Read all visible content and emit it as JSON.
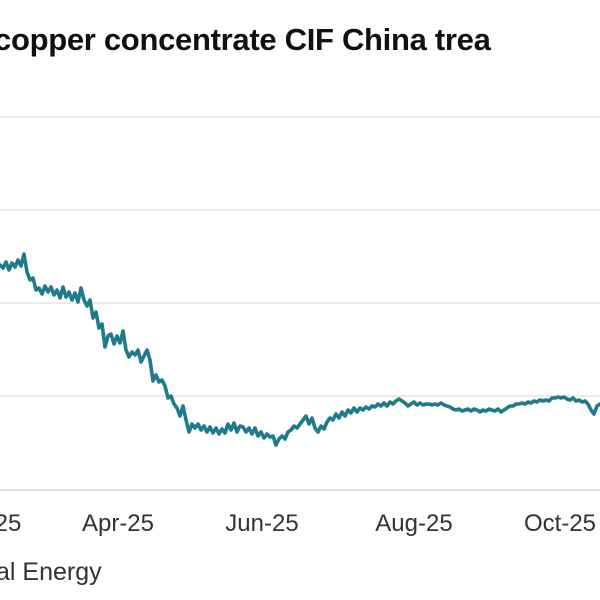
{
  "chart_data": {
    "type": "line",
    "title": "copper concentrate CIF China trea",
    "xlabel": "",
    "ylabel": "",
    "x_tick_labels": [
      "25",
      "Apr-25",
      "Jun-25",
      "Aug-25",
      "Oct-25"
    ],
    "grid": true,
    "legend": "none",
    "series": [
      {
        "color": "#1f7a8c",
        "points": [
          [
            0,
            265
          ],
          [
            3,
            268
          ],
          [
            6,
            262
          ],
          [
            9,
            270
          ],
          [
            12,
            263
          ],
          [
            15,
            267
          ],
          [
            18,
            260
          ],
          [
            21,
            266
          ],
          [
            24,
            254
          ],
          [
            27,
            272
          ],
          [
            30,
            280
          ],
          [
            33,
            278
          ],
          [
            36,
            290
          ],
          [
            39,
            288
          ],
          [
            42,
            294
          ],
          [
            45,
            286
          ],
          [
            48,
            292
          ],
          [
            51,
            287
          ],
          [
            54,
            295
          ],
          [
            57,
            290
          ],
          [
            60,
            298
          ],
          [
            63,
            287
          ],
          [
            66,
            297
          ],
          [
            69,
            292
          ],
          [
            72,
            300
          ],
          [
            75,
            293
          ],
          [
            78,
            302
          ],
          [
            81,
            288
          ],
          [
            84,
            300
          ],
          [
            87,
            306
          ],
          [
            90,
            300
          ],
          [
            93,
            318
          ],
          [
            96,
            312
          ],
          [
            99,
            328
          ],
          [
            102,
            324
          ],
          [
            105,
            347
          ],
          [
            108,
            336
          ],
          [
            111,
            334
          ],
          [
            114,
            344
          ],
          [
            117,
            336
          ],
          [
            120,
            343
          ],
          [
            123,
            331
          ],
          [
            126,
            350
          ],
          [
            129,
            357
          ],
          [
            132,
            352
          ],
          [
            135,
            355
          ],
          [
            138,
            350
          ],
          [
            141,
            362
          ],
          [
            144,
            356
          ],
          [
            147,
            350
          ],
          [
            150,
            360
          ],
          [
            153,
            381
          ],
          [
            156,
            375
          ],
          [
            159,
            382
          ],
          [
            162,
            380
          ],
          [
            165,
            386
          ],
          [
            168,
            398
          ],
          [
            171,
            396
          ],
          [
            174,
            404
          ],
          [
            177,
            408
          ],
          [
            180,
            416
          ],
          [
            183,
            406
          ],
          [
            186,
            420
          ],
          [
            189,
            432
          ],
          [
            192,
            424
          ],
          [
            195,
            428
          ],
          [
            198,
            424
          ],
          [
            201,
            430
          ],
          [
            204,
            426
          ],
          [
            207,
            432
          ],
          [
            210,
            427
          ],
          [
            213,
            433
          ],
          [
            216,
            428
          ],
          [
            219,
            434
          ],
          [
            222,
            429
          ],
          [
            225,
            433
          ],
          [
            228,
            424
          ],
          [
            231,
            430
          ],
          [
            234,
            423
          ],
          [
            237,
            432
          ],
          [
            240,
            426
          ],
          [
            243,
            427
          ],
          [
            246,
            432
          ],
          [
            249,
            428
          ],
          [
            252,
            434
          ],
          [
            255,
            428
          ],
          [
            258,
            436
          ],
          [
            261,
            432
          ],
          [
            264,
            438
          ],
          [
            267,
            434
          ],
          [
            270,
            437
          ],
          [
            273,
            436
          ],
          [
            276,
            445
          ],
          [
            279,
            439
          ],
          [
            282,
            436
          ],
          [
            285,
            439
          ],
          [
            288,
            432
          ],
          [
            291,
            430
          ],
          [
            294,
            426
          ],
          [
            297,
            428
          ],
          [
            300,
            424
          ],
          [
            303,
            420
          ],
          [
            306,
            416
          ],
          [
            309,
            424
          ],
          [
            312,
            418
          ],
          [
            315,
            428
          ],
          [
            318,
            432
          ],
          [
            321,
            426
          ],
          [
            324,
            429
          ],
          [
            327,
            422
          ],
          [
            330,
            418
          ],
          [
            333,
            420
          ],
          [
            336,
            414
          ],
          [
            339,
            418
          ],
          [
            342,
            412
          ],
          [
            345,
            416
          ],
          [
            348,
            410
          ],
          [
            351,
            413
          ],
          [
            354,
            408
          ],
          [
            357,
            412
          ],
          [
            360,
            408
          ],
          [
            363,
            410
          ],
          [
            366,
            407
          ],
          [
            369,
            409
          ],
          [
            372,
            406
          ],
          [
            375,
            407
          ],
          [
            378,
            404
          ],
          [
            381,
            406
          ],
          [
            384,
            403
          ],
          [
            387,
            406
          ],
          [
            390,
            402
          ],
          [
            393,
            404
          ],
          [
            396,
            401
          ],
          [
            399,
            399
          ],
          [
            402,
            401
          ],
          [
            405,
            403
          ],
          [
            408,
            406
          ],
          [
            411,
            404
          ],
          [
            414,
            402
          ],
          [
            417,
            405
          ],
          [
            420,
            403
          ],
          [
            423,
            405
          ],
          [
            426,
            404
          ],
          [
            429,
            404
          ],
          [
            432,
            405
          ],
          [
            435,
            404
          ],
          [
            438,
            405
          ],
          [
            441,
            403
          ],
          [
            444,
            405
          ],
          [
            447,
            406
          ],
          [
            450,
            407
          ],
          [
            453,
            409
          ],
          [
            456,
            410
          ],
          [
            459,
            409
          ],
          [
            462,
            411
          ],
          [
            465,
            410
          ],
          [
            468,
            409
          ],
          [
            471,
            411
          ],
          [
            474,
            409
          ],
          [
            477,
            410
          ],
          [
            480,
            412
          ],
          [
            483,
            410
          ],
          [
            486,
            411
          ],
          [
            489,
            409
          ],
          [
            492,
            410
          ],
          [
            495,
            411
          ],
          [
            498,
            409
          ],
          [
            501,
            412
          ],
          [
            504,
            410
          ],
          [
            507,
            408
          ],
          [
            510,
            406
          ],
          [
            513,
            406
          ],
          [
            516,
            404
          ],
          [
            519,
            404
          ],
          [
            522,
            403
          ],
          [
            525,
            404
          ],
          [
            528,
            402
          ],
          [
            531,
            403
          ],
          [
            534,
            401
          ],
          [
            537,
            402
          ],
          [
            540,
            400
          ],
          [
            543,
            401
          ],
          [
            546,
            400
          ],
          [
            549,
            401
          ],
          [
            552,
            398
          ],
          [
            555,
            398
          ],
          [
            558,
            397
          ],
          [
            561,
            398
          ],
          [
            564,
            397
          ],
          [
            567,
            399
          ],
          [
            570,
            400
          ],
          [
            573,
            398
          ],
          [
            576,
            401
          ],
          [
            579,
            400
          ],
          [
            582,
            402
          ],
          [
            585,
            401
          ],
          [
            588,
            404
          ],
          [
            591,
            410
          ],
          [
            594,
            414
          ],
          [
            597,
            406
          ],
          [
            600,
            404
          ]
        ]
      }
    ]
  },
  "source": {
    "text": "al Energy"
  }
}
